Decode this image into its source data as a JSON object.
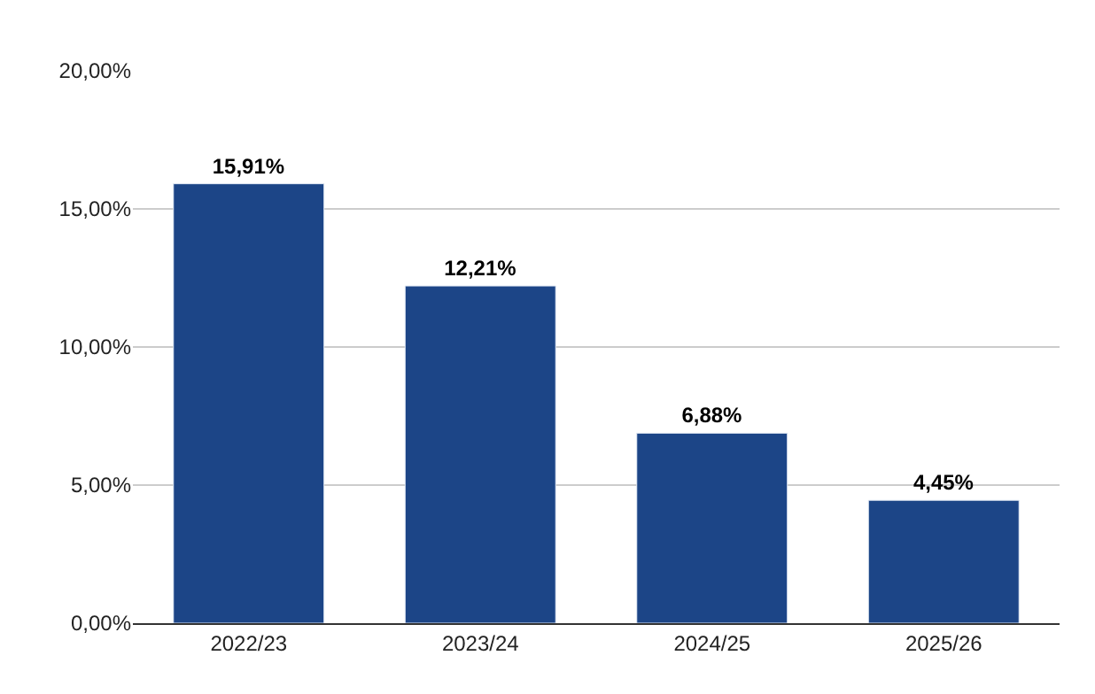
{
  "chart_data": {
    "type": "bar",
    "categories": [
      "2022/23",
      "2023/24",
      "2024/25",
      "2025/26"
    ],
    "values": [
      15.91,
      12.21,
      6.88,
      4.45
    ],
    "value_labels": [
      "15,91%",
      "12,21%",
      "6,88%",
      "4,45%"
    ],
    "color": "#1c4587",
    "ylim": [
      0,
      20
    ],
    "yticks": [
      {
        "value": 0,
        "label": "0,00%"
      },
      {
        "value": 5,
        "label": "5,00%"
      },
      {
        "value": 10,
        "label": "10,00%"
      },
      {
        "value": 15,
        "label": "15,00%"
      },
      {
        "value": 20,
        "label": "20,00%"
      }
    ],
    "grid": "y",
    "legend": false
  }
}
